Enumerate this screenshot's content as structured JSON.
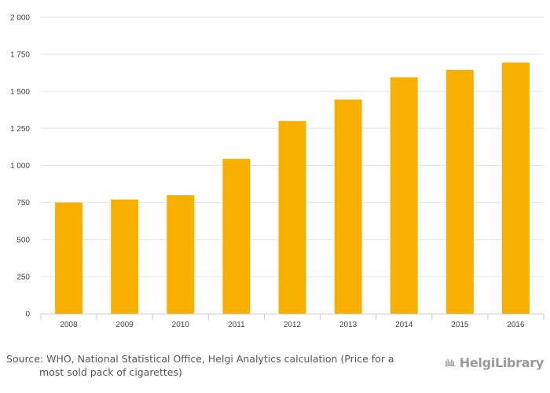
{
  "chart_data": {
    "type": "bar",
    "categories": [
      "2008",
      "2009",
      "2010",
      "2011",
      "2012",
      "2013",
      "2014",
      "2015",
      "2016"
    ],
    "values": [
      750,
      770,
      800,
      1045,
      1300,
      1445,
      1595,
      1645,
      1695
    ],
    "title": "",
    "xlabel": "",
    "ylabel": "",
    "ylim": [
      0,
      2000
    ],
    "yticks": [
      0,
      250,
      500,
      750,
      1000,
      1250,
      1500,
      1750,
      2000
    ],
    "ytick_labels": [
      "0",
      "250",
      "500",
      "750",
      "1 000",
      "1 250",
      "1 500",
      "1 750",
      "2 000"
    ],
    "bar_color": "#F9B000",
    "grid": true,
    "legend": "none"
  },
  "footer": {
    "source_line1": "Source: WHO, National Statistical Office, Helgi Analytics calculation (Price for a",
    "source_line2": "most sold pack of cigarettes)",
    "logo_text": "HelgiLibrary",
    "logo_icon": "helgi-library-icon"
  }
}
